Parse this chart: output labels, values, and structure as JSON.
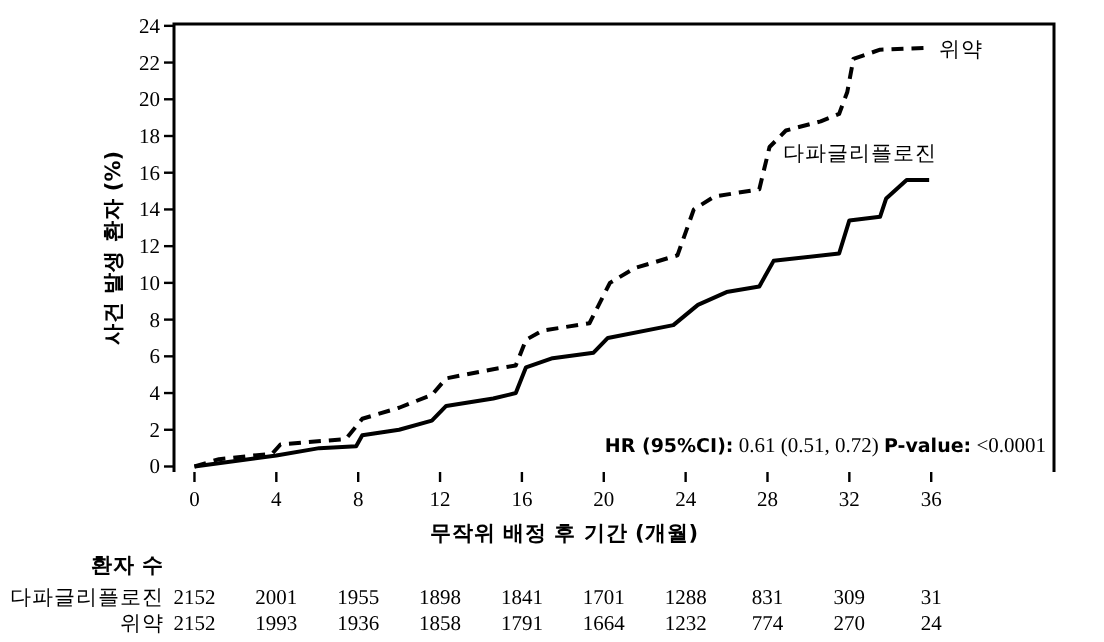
{
  "chart_data": {
    "type": "line",
    "xlabel": "무작위 배정 후 기간 (개월)",
    "ylabel": "사건 발생 환자 (%)",
    "xlim": [
      -1,
      42
    ],
    "ylim": [
      -0.3,
      24.1
    ],
    "xticks": [
      0,
      4,
      8,
      12,
      16,
      20,
      24,
      28,
      32,
      36
    ],
    "yticks": [
      0,
      2,
      4,
      6,
      8,
      10,
      12,
      14,
      16,
      18,
      20,
      22,
      24
    ],
    "legend": false,
    "grid": false,
    "series": [
      {
        "name": "위약",
        "color": "#000000",
        "line_style": "dashed",
        "x": [
          0,
          1.2,
          3.8,
          4.2,
          7.4,
          8.2,
          10,
          11.6,
          12.3,
          14.6,
          15.7,
          16.2,
          17,
          19.3,
          19.8,
          20.3,
          21.5,
          23.6,
          24.4,
          25.4,
          27.6,
          28.1,
          28.9,
          30.6,
          31.5,
          31.9,
          32.2,
          33.5,
          35.8
        ],
        "values": [
          0,
          0.4,
          0.7,
          1.2,
          1.5,
          2.6,
          3.2,
          3.9,
          4.8,
          5.3,
          5.5,
          6.9,
          7.4,
          7.8,
          8.9,
          10.0,
          10.8,
          11.5,
          14.0,
          14.7,
          15.1,
          17.4,
          18.3,
          18.8,
          19.2,
          20.4,
          22.2,
          22.7,
          22.8
        ]
      },
      {
        "name": "다파글리플로진",
        "color": "#000000",
        "line_style": "solid",
        "x": [
          0,
          4,
          6.1,
          7.9,
          8.2,
          10,
          11.6,
          12.3,
          14.6,
          15.7,
          16.2,
          17.5,
          19.5,
          20.2,
          23.4,
          24.6,
          26,
          27.6,
          28.3,
          31.5,
          32,
          33.5,
          33.8,
          34.8,
          35.9
        ],
        "values": [
          0,
          0.6,
          1.0,
          1.1,
          1.7,
          2.0,
          2.5,
          3.3,
          3.7,
          4.0,
          5.4,
          5.9,
          6.2,
          7.0,
          7.7,
          8.8,
          9.5,
          9.8,
          11.2,
          11.6,
          13.4,
          13.6,
          14.6,
          15.6,
          15.6
        ]
      }
    ],
    "annotations": [
      "**HR (95%CI):** 0.61 (0.51, 0.72)   **P-value:** <0.0001",
      "환자 수",
      "2152",
      "2001",
      "1955",
      "1898",
      "1841",
      "1701",
      "1288",
      "831",
      "309",
      "31",
      "2152",
      "1993",
      "1936",
      "1858",
      "1791",
      "1664",
      "1232",
      "774",
      "270",
      "24"
    ]
  }
}
